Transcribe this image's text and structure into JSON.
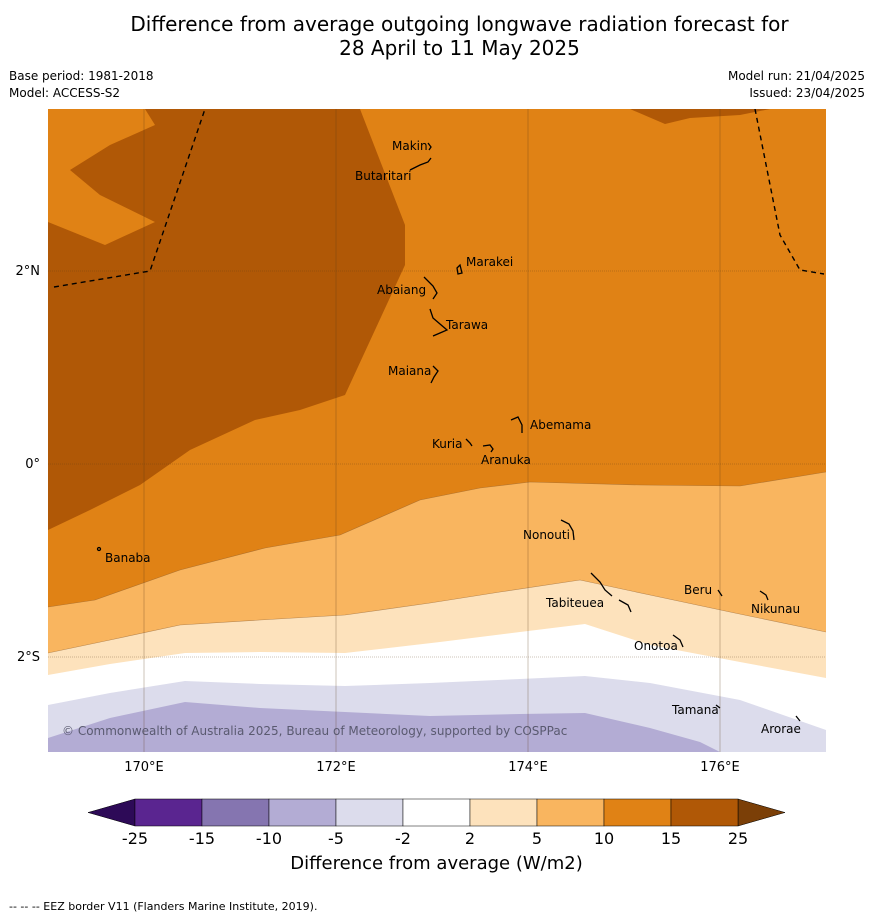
{
  "title": {
    "line1": "Difference from average outgoing longwave radiation forecast for",
    "line2": "28 April to 11 May 2025"
  },
  "meta": {
    "base_period": "Base period: 1981-2018",
    "model": "Model: ACCESS-S2",
    "model_run": "Model run: 21/04/2025",
    "issued": "Issued: 23/04/2025"
  },
  "axes": {
    "lat_labels": [
      "2°N",
      "0°",
      "2°S"
    ],
    "lon_labels": [
      "170°E",
      "172°E",
      "174°E",
      "176°E"
    ]
  },
  "islands": [
    "Makin",
    "Butaritari",
    "Marakei",
    "Abaiang",
    "Tarawa",
    "Maiana",
    "Abemama",
    "Kuria",
    "Aranuka",
    "Nonouti",
    "Banaba",
    "Beru",
    "Nikunau",
    "Tabiteuea",
    "Onotoa",
    "Tamana",
    "Arorae"
  ],
  "copyright": "© Commonwealth of Australia 2025, Bureau of Meteorology, supported by COSPPac",
  "colorbar": {
    "ticks": [
      "-25",
      "-15",
      "-10",
      "-5",
      "-2",
      "2",
      "5",
      "10",
      "15",
      "25"
    ],
    "colors": [
      "#5a2590",
      "#8575b0",
      "#b3acd4",
      "#dcdcec",
      "#ffffff",
      "#fde2bc",
      "#f9b55f",
      "#e08215",
      "#b05806"
    ],
    "under_color": "#2d0a57",
    "over_color": "#7b3f07",
    "title": "Difference from average (W/m2)"
  },
  "footer": "--  --  -- EEZ border V11 (Flanders Marine Institute, 2019)."
}
